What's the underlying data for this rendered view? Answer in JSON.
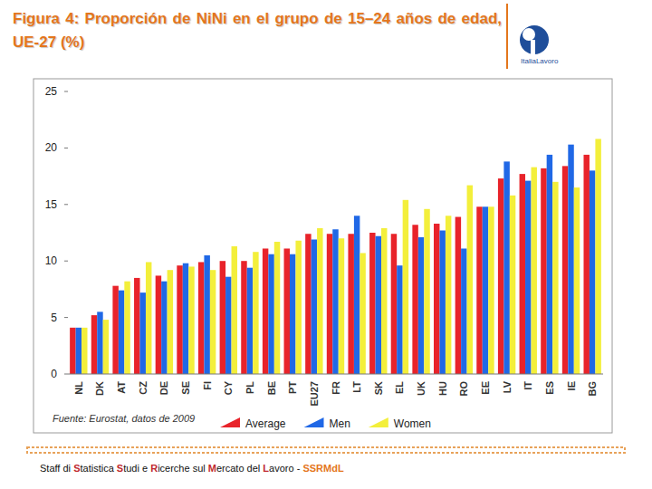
{
  "header": {
    "title": "Figura 4: Proporción de NiNi en el grupo de 15–24 años de edad, UE-27 (%)",
    "logo": "ItaliaLavoro"
  },
  "chart_data": {
    "type": "bar",
    "categories": [
      "NL",
      "DK",
      "AT",
      "CZ",
      "DE",
      "SE",
      "FI",
      "CY",
      "PL",
      "BE",
      "PT",
      "EU27",
      "FR",
      "LT",
      "SK",
      "EL",
      "UK",
      "HU",
      "RO",
      "EE",
      "LV",
      "IT",
      "ES",
      "IE",
      "BG"
    ],
    "series": [
      {
        "name": "Average",
        "color": "#e8232a",
        "values": [
          4.1,
          5.2,
          7.8,
          8.5,
          8.7,
          9.6,
          9.9,
          10.0,
          10.0,
          11.1,
          11.1,
          12.4,
          12.4,
          12.4,
          12.5,
          12.4,
          13.2,
          13.3,
          13.9,
          14.8,
          17.3,
          17.7,
          18.2,
          18.4,
          19.4
        ]
      },
      {
        "name": "Men",
        "color": "#2068e6",
        "values": [
          4.1,
          5.5,
          7.4,
          7.2,
          8.2,
          9.8,
          10.5,
          8.6,
          9.4,
          10.6,
          10.6,
          11.9,
          12.8,
          14.0,
          12.2,
          9.6,
          12.1,
          12.7,
          11.1,
          14.8,
          18.8,
          17.1,
          19.4,
          20.3,
          18.0
        ]
      },
      {
        "name": "Women",
        "color": "#f3ef3b",
        "values": [
          4.1,
          4.8,
          8.2,
          9.9,
          9.2,
          9.5,
          9.2,
          11.3,
          10.8,
          11.7,
          11.8,
          12.9,
          12.0,
          10.7,
          12.9,
          15.4,
          14.6,
          14.0,
          16.7,
          14.8,
          15.8,
          18.3,
          17.0,
          16.5,
          20.8
        ]
      }
    ],
    "ylim": [
      0,
      25
    ],
    "yticks": [
      0,
      5,
      10,
      15,
      20,
      25
    ],
    "grid": false,
    "legend": "bottom",
    "note": "Fuente: Eurostat, datos de 2009"
  },
  "footer": {
    "text": "Staff di Statistica Studi e Ricerche sul Mercato del Lavoro - SSRMdL"
  }
}
